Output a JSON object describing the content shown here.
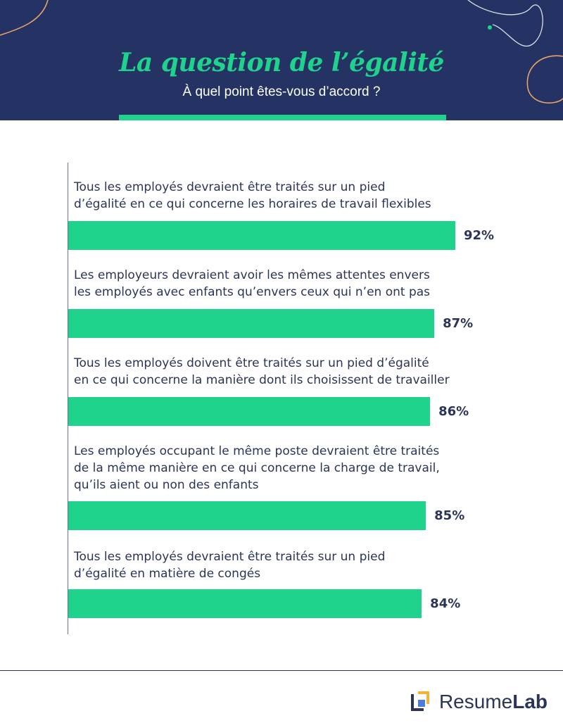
{
  "header": {
    "title": "La question de l’égalité",
    "subtitle": "À quel point êtes-vous d’accord ?"
  },
  "colors": {
    "navy": "#243363",
    "green": "#1fd38c",
    "text": "#2a3558",
    "decoration_orange": "#e8a46a"
  },
  "chart_data": {
    "type": "bar",
    "orientation": "horizontal",
    "title": "La question de l’égalité",
    "subtitle": "À quel point êtes-vous d’accord ?",
    "categories": [
      [
        "Tous les employés devraient être traités sur un pied",
        "d’égalité en ce qui concerne les horaires de travail flexibles"
      ],
      [
        "Les employeurs devraient avoir les mêmes attentes envers",
        "les employés avec enfants qu’envers ceux qui n’en ont pas"
      ],
      [
        "Tous les employés doivent être traités sur un pied d’égalité",
        "en ce qui concerne la manière dont ils choisissent de travailler"
      ],
      [
        "Les employés occupant le même poste devraient être traités",
        "de la même manière en ce qui concerne la charge de travail,",
        "qu’ils aient ou non des enfants"
      ],
      [
        "Tous les employés devraient être traités sur un pied",
        "d’égalité en matière de congés"
      ]
    ],
    "values": [
      92,
      87,
      86,
      85,
      84
    ],
    "value_labels": [
      "92%",
      "87%",
      "86%",
      "85%",
      "84%"
    ],
    "xlim": [
      0,
      100
    ],
    "grid": false,
    "legend": "none"
  },
  "footer": {
    "brand_part1": "Resume",
    "brand_part2": "Lab",
    "logo_icon": "resumelab-logo-icon"
  }
}
